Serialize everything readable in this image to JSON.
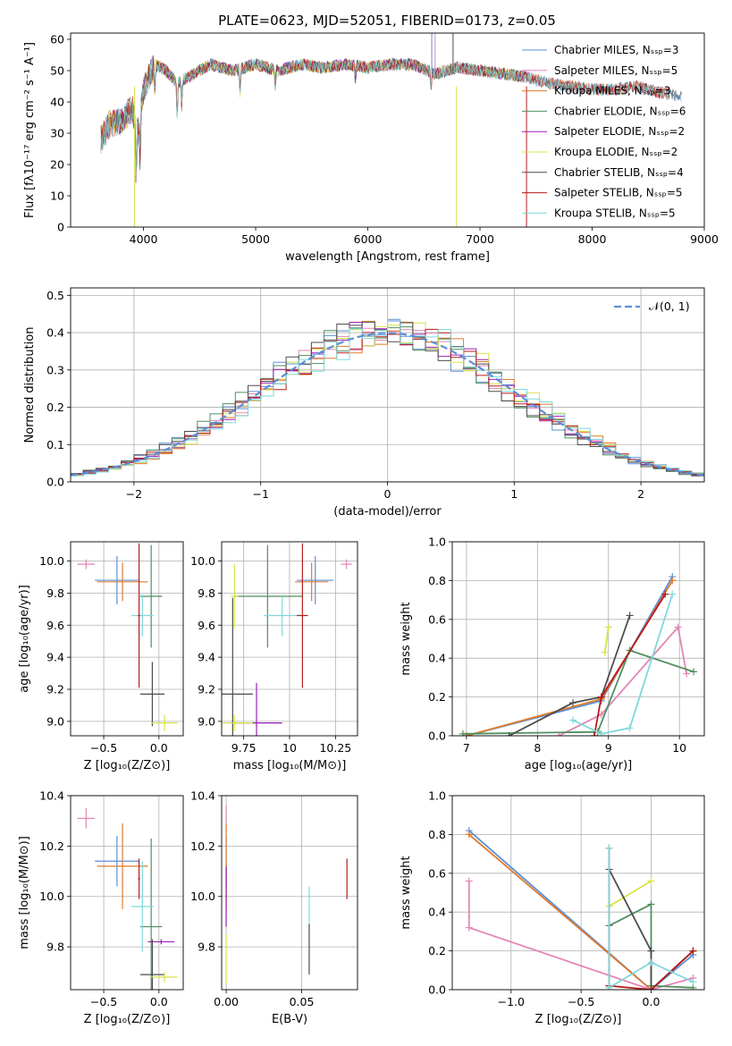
{
  "page": {
    "title": "PLATE=0623, MJD=52051, FIBERID=0173, z=0.05"
  },
  "colors": {
    "c_miles": "#5b8fd9",
    "s_miles": "#e286b6",
    "k_miles": "#e07b2a",
    "c_elodie": "#4f8f5f",
    "s_elodie": "#9a1dbb",
    "k_elodie": "#d7e34a",
    "c_stelib": "#4d4d4d",
    "s_stelib": "#b71c1c",
    "k_stelib": "#7fd8dc",
    "gauss": "#5b8fd9"
  },
  "chart_data": [
    {
      "id": "spectrum",
      "type": "line",
      "xlabel": "wavelength [Angstrom, rest frame]",
      "ylabel": "Flux [fλ10⁻¹⁷ erg cm⁻² s⁻¹ A⁻¹]",
      "xlim": [
        3350,
        9000
      ],
      "ylim": [
        0,
        62
      ],
      "xticks": [
        4000,
        5000,
        6000,
        7000,
        8000,
        9000
      ],
      "yticks": [
        0,
        10,
        20,
        30,
        40,
        50,
        60
      ],
      "legend_position": "top-right",
      "legend": [
        "Chabrier MILES, Nₛₛₚ=3",
        "Salpeter MILES, Nₛₛₚ=5",
        "Kroupa MILES, Nₛₛₚ=3",
        "Chabrier ELODIE, Nₛₛₚ=6",
        "Salpeter ELODIE, Nₛₛₚ=2",
        "Kroupa ELODIE, Nₛₛₚ=2",
        "Chabrier STELIB, Nₛₛₚ=4",
        "Salpeter STELIB, Nₛₛₚ=5",
        "Kroupa STELIB, Nₛₛₚ=5"
      ],
      "continuum": [
        [
          3620,
          28
        ],
        [
          3700,
          33
        ],
        [
          3800,
          34
        ],
        [
          3900,
          38
        ],
        [
          3950,
          30
        ],
        [
          4000,
          44
        ],
        [
          4100,
          52
        ],
        [
          4200,
          50
        ],
        [
          4300,
          46
        ],
        [
          4400,
          48
        ],
        [
          4500,
          50
        ],
        [
          4600,
          52
        ],
        [
          4800,
          50
        ],
        [
          5000,
          52
        ],
        [
          5200,
          50
        ],
        [
          5400,
          52
        ],
        [
          5600,
          51
        ],
        [
          5800,
          52
        ],
        [
          6000,
          51
        ],
        [
          6200,
          52
        ],
        [
          6400,
          52
        ],
        [
          6600,
          49
        ],
        [
          6800,
          51
        ],
        [
          7000,
          50
        ],
        [
          7200,
          49
        ],
        [
          7400,
          48
        ],
        [
          7600,
          46
        ],
        [
          7800,
          45
        ],
        [
          8000,
          44
        ],
        [
          8200,
          44
        ],
        [
          8400,
          45
        ],
        [
          8600,
          43
        ],
        [
          8800,
          42
        ]
      ]
    },
    {
      "id": "residuals",
      "type": "line",
      "xlabel": "(data-model)/error",
      "ylabel": "Normed distribution",
      "xlim": [
        -2.5,
        2.5
      ],
      "ylim": [
        0,
        0.52
      ],
      "xticks": [
        -2,
        -1,
        0,
        1,
        2
      ],
      "yticks": [
        0.0,
        0.1,
        0.2,
        0.3,
        0.4,
        0.5
      ],
      "legend_position": "top-right",
      "legend": [
        "𝒩(0, 1)"
      ],
      "hist_bin_width": 0.1
    },
    {
      "id": "age_vs_Z",
      "type": "scatter",
      "xlabel": "Z [log₁₀(Z/Z⊙)]",
      "ylabel": "age  [log₁₀(age/yr)]",
      "xlim": [
        -0.8,
        0.22
      ],
      "ylim": [
        8.91,
        10.12
      ],
      "xticks": [
        -0.5,
        0.0
      ],
      "yticks": [
        9.0,
        9.2,
        9.4,
        9.6,
        9.8,
        10.0
      ],
      "points": [
        {
          "s": "s_miles",
          "x": -0.66,
          "y": 9.98,
          "dx": 0.08,
          "dy": 0.03
        },
        {
          "s": "c_miles",
          "x": -0.38,
          "y": 9.88,
          "dx": 0.2,
          "dy": 0.15
        },
        {
          "s": "k_miles",
          "x": -0.33,
          "y": 9.87,
          "dx": 0.23,
          "dy": 0.12
        },
        {
          "s": "c_elodie",
          "x": -0.07,
          "y": 9.78,
          "dx": 0.1,
          "dy": 0.32
        },
        {
          "s": "k_stelib",
          "x": -0.15,
          "y": 9.66,
          "dx": 0.1,
          "dy": 0.13
        },
        {
          "s": "s_stelib",
          "x": -0.18,
          "y": 9.66,
          "dx": 0.01,
          "dy": 0.45
        },
        {
          "s": "c_stelib",
          "x": -0.06,
          "y": 9.17,
          "dx": 0.11,
          "dy": 0.2
        },
        {
          "s": "k_elodie",
          "x": 0.05,
          "y": 8.99,
          "dx": 0.12,
          "dy": 0.05
        }
      ]
    },
    {
      "id": "age_vs_mass",
      "type": "scatter",
      "xlabel": "mass [log₁₀(M/M⊙)]",
      "ylabel": "",
      "xlim": [
        9.63,
        10.37
      ],
      "ylim": [
        8.91,
        10.12
      ],
      "xticks": [
        9.75,
        10.0,
        10.25
      ],
      "yticks": [
        9.0,
        9.2,
        9.4,
        9.6,
        9.8,
        10.0
      ],
      "points": [
        {
          "s": "s_miles",
          "x": 10.31,
          "y": 9.98,
          "dx": 0.03,
          "dy": 0.03
        },
        {
          "s": "c_miles",
          "x": 10.14,
          "y": 9.88,
          "dx": 0.1,
          "dy": 0.15
        },
        {
          "s": "k_miles",
          "x": 10.12,
          "y": 9.87,
          "dx": 0.09,
          "dy": 0.12
        },
        {
          "s": "c_elodie",
          "x": 9.88,
          "y": 9.78,
          "dx": 0.19,
          "dy": 0.32
        },
        {
          "s": "k_elodie",
          "x": 9.7,
          "y": 9.78,
          "dx": 0.02,
          "dy": 0.2
        },
        {
          "s": "k_stelib",
          "x": 9.96,
          "y": 9.66,
          "dx": 0.1,
          "dy": 0.13
        },
        {
          "s": "s_stelib",
          "x": 10.07,
          "y": 9.66,
          "dx": 0.03,
          "dy": 0.45
        },
        {
          "s": "c_stelib",
          "x": 9.69,
          "y": 9.17,
          "dx": 0.11,
          "dy": 0.6
        },
        {
          "s": "s_elodie",
          "x": 9.82,
          "y": 8.99,
          "dx": 0.14,
          "dy": 0.25
        },
        {
          "s": "k_elodie",
          "x": 9.7,
          "y": 8.99,
          "dx": 0.1,
          "dy": 0.05
        }
      ]
    },
    {
      "id": "weights_vs_age",
      "type": "line",
      "xlabel": "age  [log₁₀(age/yr)]",
      "ylabel": "mass weight",
      "xlim": [
        6.8,
        10.35
      ],
      "ylim": [
        0,
        1.0
      ],
      "xticks": [
        7,
        8,
        9,
        10
      ],
      "yticks": [
        0.0,
        0.2,
        0.4,
        0.6,
        0.8,
        1.0
      ],
      "series": [
        {
          "s": "c_miles",
          "x": [
            7.0,
            8.9,
            9.9
          ],
          "y": [
            0.0,
            0.18,
            0.82
          ]
        },
        {
          "s": "k_miles",
          "x": [
            7.0,
            8.9,
            9.9
          ],
          "y": [
            0.0,
            0.19,
            0.8
          ]
        },
        {
          "s": "s_miles",
          "x": [
            8.3,
            8.9,
            9.98,
            10.1
          ],
          "y": [
            0.0,
            0.11,
            0.56,
            0.32
          ]
        },
        {
          "s": "c_elodie",
          "x": [
            6.95,
            8.85,
            9.3,
            10.2
          ],
          "y": [
            0.01,
            0.02,
            0.44,
            0.33
          ]
        },
        {
          "s": "k_elodie",
          "x": [
            8.95,
            9.0
          ],
          "y": [
            0.43,
            0.56
          ]
        },
        {
          "s": "c_stelib",
          "x": [
            7.6,
            8.5,
            8.9,
            9.3
          ],
          "y": [
            0.0,
            0.17,
            0.2,
            0.62
          ]
        },
        {
          "s": "s_stelib",
          "x": [
            8.8,
            8.9,
            9.8
          ],
          "y": [
            0.0,
            0.2,
            0.73
          ]
        },
        {
          "s": "k_stelib",
          "x": [
            8.5,
            8.9,
            9.3,
            9.9
          ],
          "y": [
            0.08,
            0.01,
            0.04,
            0.73
          ]
        }
      ]
    },
    {
      "id": "mass_vs_Z",
      "type": "scatter",
      "xlabel": "Z [log₁₀(Z/Z⊙)]",
      "ylabel": "mass [log₁₀(M/M⊙)]",
      "xlim": [
        -0.8,
        0.22
      ],
      "ylim": [
        9.63,
        10.4
      ],
      "xticks": [
        -0.5,
        0.0
      ],
      "yticks": [
        9.8,
        10.0,
        10.2,
        10.4
      ],
      "points": [
        {
          "s": "s_miles",
          "x": -0.66,
          "y": 10.31,
          "dx": 0.08,
          "dy": 0.04
        },
        {
          "s": "c_miles",
          "x": -0.38,
          "y": 10.14,
          "dx": 0.2,
          "dy": 0.1
        },
        {
          "s": "k_miles",
          "x": -0.33,
          "y": 10.12,
          "dx": 0.23,
          "dy": 0.17
        },
        {
          "s": "s_stelib",
          "x": -0.18,
          "y": 10.07,
          "dx": 0.01,
          "dy": 0.08
        },
        {
          "s": "c_elodie",
          "x": -0.07,
          "y": 9.88,
          "dx": 0.1,
          "dy": 0.35
        },
        {
          "s": "k_stelib",
          "x": -0.15,
          "y": 9.96,
          "dx": 0.1,
          "dy": 0.18
        },
        {
          "s": "s_elodie",
          "x": 0.02,
          "y": 9.82,
          "dx": 0.12,
          "dy": 0.01
        },
        {
          "s": "c_stelib",
          "x": -0.06,
          "y": 9.69,
          "dx": 0.11,
          "dy": 0.14
        },
        {
          "s": "k_elodie",
          "x": 0.05,
          "y": 9.68,
          "dx": 0.12,
          "dy": 0.02
        }
      ]
    },
    {
      "id": "mass_vs_ebv",
      "type": "scatter",
      "xlabel": "E(B-V)",
      "ylabel": "",
      "xlim": [
        -0.003,
        0.087
      ],
      "ylim": [
        9.63,
        10.4
      ],
      "xticks": [
        0.0,
        0.05
      ],
      "yticks": [
        9.8,
        10.0,
        10.2,
        10.4
      ],
      "points": [
        {
          "s": "s_miles",
          "x": 0.0,
          "y": 10.31,
          "dx": 0.0,
          "dy": 0.05
        },
        {
          "s": "c_miles",
          "x": 0.0,
          "y": 10.14,
          "dx": 0.0,
          "dy": 0.1
        },
        {
          "s": "k_miles",
          "x": 0.0,
          "y": 10.12,
          "dx": 0.0,
          "dy": 0.17
        },
        {
          "s": "s_elodie",
          "x": 0.0,
          "y": 10.0,
          "dx": 0.0,
          "dy": 0.12
        },
        {
          "s": "k_elodie",
          "x": 0.0,
          "y": 9.75,
          "dx": 0.0,
          "dy": 0.1
        },
        {
          "s": "k_stelib",
          "x": 0.055,
          "y": 9.96,
          "dx": 0.0,
          "dy": 0.08
        },
        {
          "s": "c_stelib",
          "x": 0.055,
          "y": 9.79,
          "dx": 0.0,
          "dy": 0.1
        },
        {
          "s": "s_stelib",
          "x": 0.08,
          "y": 10.07,
          "dx": 0.0,
          "dy": 0.08
        }
      ]
    },
    {
      "id": "weights_vs_Z",
      "type": "line",
      "xlabel": "Z [log₁₀(Z/Z⊙)]",
      "ylabel": "mass weight",
      "xlim": [
        -1.42,
        0.38
      ],
      "ylim": [
        0,
        1.0
      ],
      "xticks": [
        -1.0,
        -0.5,
        0.0
      ],
      "yticks": [
        0.0,
        0.2,
        0.4,
        0.6,
        0.8,
        1.0
      ],
      "series": [
        {
          "s": "c_miles",
          "x": [
            -1.3,
            0.0,
            0.3
          ],
          "y": [
            0.82,
            0.0,
            0.18
          ]
        },
        {
          "s": "k_miles",
          "x": [
            -1.3,
            0.0,
            0.3
          ],
          "y": [
            0.8,
            0.0,
            0.2
          ]
        },
        {
          "s": "s_miles",
          "x": [
            -1.3,
            -1.3,
            0.0,
            0.3
          ],
          "y": [
            0.56,
            0.32,
            0.0,
            0.06
          ]
        },
        {
          "s": "c_elodie",
          "x": [
            -0.3,
            -0.3,
            0.0,
            0.0,
            0.3
          ],
          "y": [
            0.02,
            0.33,
            0.44,
            0.02,
            0.01
          ]
        },
        {
          "s": "k_elodie",
          "x": [
            -0.3,
            0.0
          ],
          "y": [
            0.43,
            0.56
          ]
        },
        {
          "s": "c_stelib",
          "x": [
            -0.3,
            0.0,
            0.0,
            0.3
          ],
          "y": [
            0.62,
            0.2,
            0.0,
            0.2
          ]
        },
        {
          "s": "s_stelib",
          "x": [
            -0.3,
            -0.3,
            0.0,
            0.3
          ],
          "y": [
            0.73,
            0.02,
            0.0,
            0.2
          ]
        },
        {
          "s": "k_stelib",
          "x": [
            -0.3,
            -0.3,
            0.0,
            0.3
          ],
          "y": [
            0.73,
            0.01,
            0.14,
            0.04
          ]
        }
      ]
    }
  ]
}
